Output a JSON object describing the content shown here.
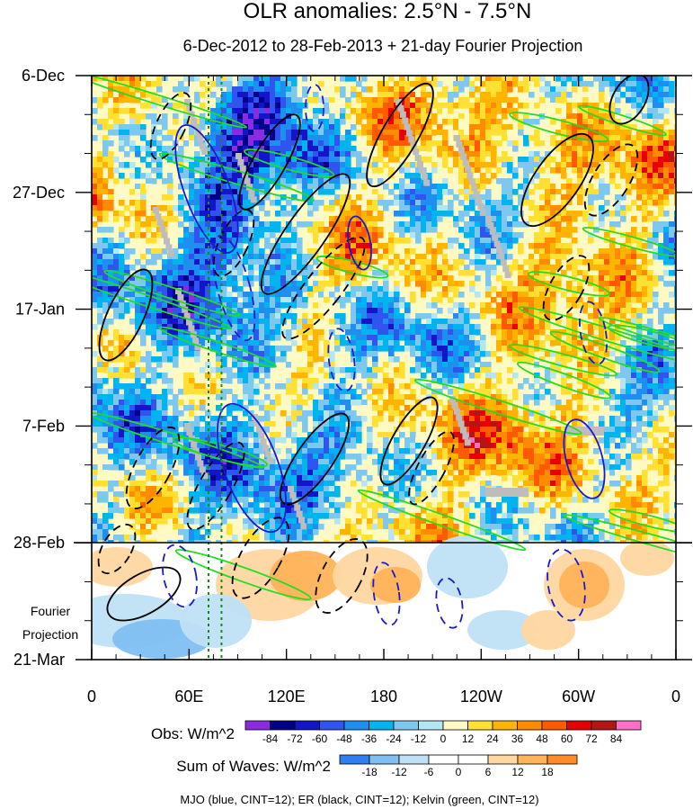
{
  "chart_data": {
    "type": "heatmap",
    "title": "OLR anomalies: 2.5°N - 7.5°N",
    "subtitle": "6-Dec-2012 to 28-Feb-2013 + 21-day Fourier Projection",
    "x_tick_labels": [
      "0",
      "60E",
      "120E",
      "180",
      "120W",
      "60W",
      "0"
    ],
    "x_ticks_deg_east": [
      0,
      60,
      120,
      180,
      240,
      300,
      360
    ],
    "xlim_deg_east": [
      0,
      360
    ],
    "y_tick_labels": [
      "6-Dec",
      "27-Dec",
      "17-Jan",
      "7-Feb",
      "28-Feb",
      "21-Mar"
    ],
    "y_axis_direction": "time increases downward",
    "ylim": [
      "6-Dec-2012",
      "21-Mar-2013"
    ],
    "end_of_observations": "28-Feb",
    "fourier_projection_label": [
      "Fourier",
      "Projection"
    ],
    "reference_longitudes_deg_east": [
      72,
      80
    ],
    "obs_colorbar": {
      "label": "Obs: W/m^2",
      "levels": [
        -84,
        -72,
        -60,
        -48,
        -36,
        -24,
        -12,
        0,
        12,
        24,
        36,
        48,
        60,
        72,
        84
      ],
      "level_labels": [
        "-84",
        "-72",
        "-60",
        "-48",
        "-36",
        "-24",
        "-12",
        "0",
        "12",
        "24",
        "36",
        "48",
        "60",
        "72",
        "84"
      ],
      "colors": [
        "#8a2be2",
        "#00008b",
        "#1414c8",
        "#2f55ee",
        "#1e8ff0",
        "#00b4f0",
        "#7ec8ef",
        "#b4e6f2",
        "#fff9c4",
        "#ffe033",
        "#ffb400",
        "#ff8c00",
        "#ff5a00",
        "#e60000",
        "#b41414",
        "#ff6ec7"
      ]
    },
    "waves_colorbar": {
      "label": "Sum of Waves: W/m^2",
      "levels": [
        -18,
        -12,
        -6,
        0,
        6,
        12,
        18
      ],
      "level_labels": [
        "-18",
        "-12",
        "-6",
        "0",
        "6",
        "12",
        "18"
      ],
      "colors": [
        "#2f7ff0",
        "#7fbff2",
        "#bfe0f5",
        "#ffffff",
        "#ffffff",
        "#ffd7a0",
        "#ffb35a",
        "#ff8c28"
      ]
    },
    "contour_legend": "MJO (blue, CINT=12); ER (black, CINT=12); Kelvin (green, CINT=12)",
    "contour_series": [
      {
        "name": "MJO",
        "color": "#1a1acd",
        "cint": 12
      },
      {
        "name": "ER",
        "color": "#000000",
        "cint": 12
      },
      {
        "name": "Kelvin",
        "color": "#22dd22",
        "cint": 12
      }
    ],
    "grid": false
  }
}
